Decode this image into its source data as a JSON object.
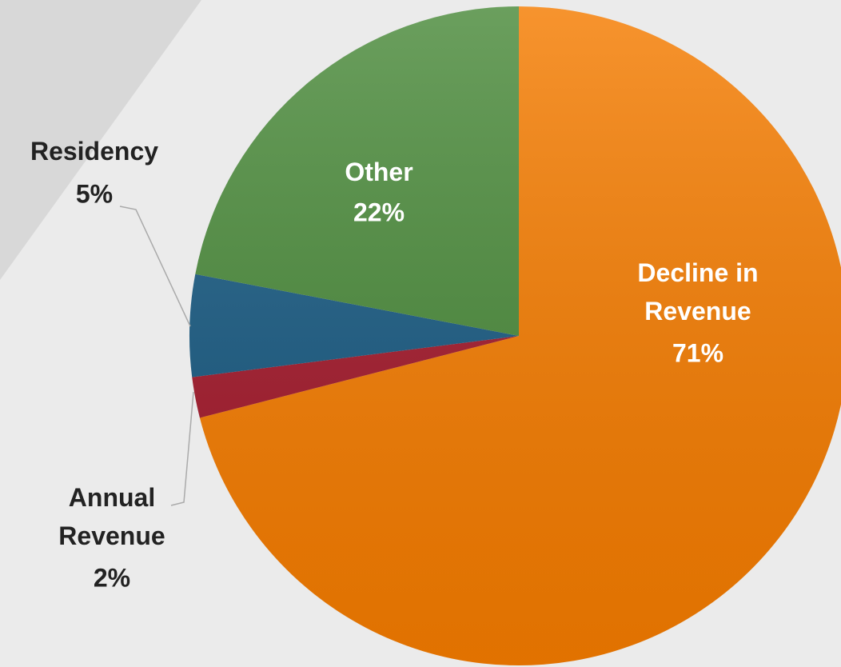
{
  "chart_data": {
    "type": "pie",
    "categories": [
      "Decline in Revenue",
      "Annual Revenue",
      "Residency",
      "Other"
    ],
    "values": [
      71,
      2,
      5,
      22
    ],
    "value_labels": [
      "71%",
      "2%",
      "5%",
      "22%"
    ],
    "colors": [
      "#f57c00",
      "#a3192b",
      "#185a82",
      "#4a8a3a"
    ]
  }
}
